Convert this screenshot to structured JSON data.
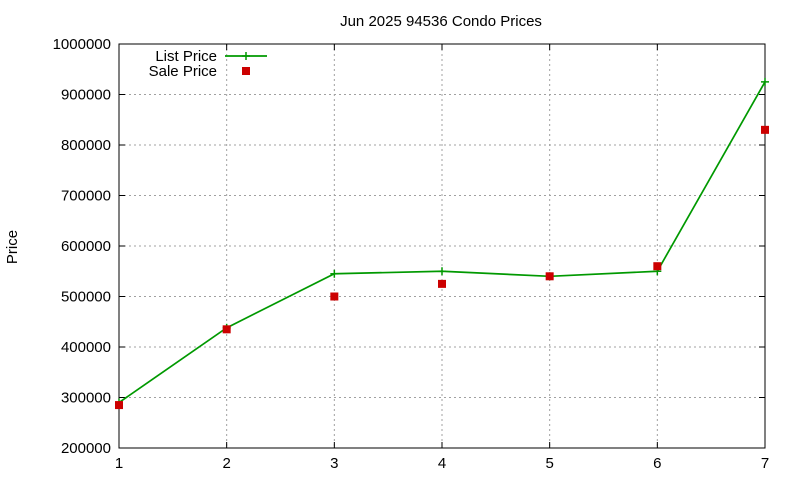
{
  "chart_data": {
    "type": "line",
    "title": "Jun 2025 94536 Condo Prices",
    "xlabel": "",
    "ylabel": "Price",
    "x": [
      1,
      2,
      3,
      4,
      5,
      6,
      7
    ],
    "xlim": [
      1,
      7
    ],
    "ylim": [
      200000,
      1000000
    ],
    "xticks": [
      "1",
      "2",
      "3",
      "4",
      "5",
      "6",
      "7"
    ],
    "yticks": [
      "200000",
      "300000",
      "400000",
      "500000",
      "600000",
      "700000",
      "800000",
      "900000",
      "1000000"
    ],
    "grid": true,
    "legend_position": "top-left",
    "series": [
      {
        "name": "List Price",
        "style": "line-with-plus-markers",
        "color": "#009900",
        "values": [
          290000,
          438000,
          545000,
          550000,
          540000,
          550000,
          925000
        ]
      },
      {
        "name": "Sale Price",
        "style": "square-markers",
        "color": "#cc0000",
        "values": [
          285000,
          435000,
          500000,
          525000,
          540000,
          560000,
          830000
        ]
      }
    ]
  }
}
